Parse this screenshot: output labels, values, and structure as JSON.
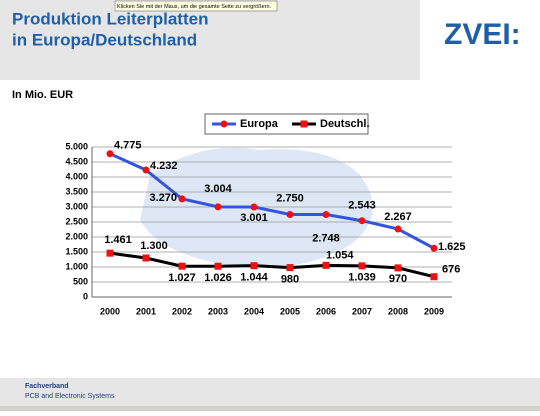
{
  "header": {
    "title_line1": "Produktion Leiterplatten",
    "title_line2": "in Europa/Deutschland",
    "tooltip": "Klicken Sie mit der Maus, um die gesamte Seite zu vergrößern.",
    "logo": "ZVEI:"
  },
  "unit_label": "In Mio. EUR",
  "footer": {
    "line1": "Fachverband",
    "line2": "PCB and Electronic Systems"
  },
  "chart_data": {
    "type": "line",
    "categories": [
      "2000",
      "2001",
      "2002",
      "2003",
      "2004",
      "2005",
      "2006",
      "2007",
      "2008",
      "2009"
    ],
    "series": [
      {
        "name": "Europa",
        "color": "#3355dd",
        "marker_color": "#ee1111",
        "values": [
          4775,
          4232,
          3270,
          3004,
          3001,
          2750,
          2748,
          2543,
          2267,
          1625
        ],
        "value_labels": [
          "4.775",
          "4.232",
          "3.270",
          "3.004",
          "3.001",
          "2.750",
          "2.748",
          "2.543",
          "2.267",
          "1.625"
        ]
      },
      {
        "name": "Deutschl.",
        "color": "#000000",
        "marker_color": "#ee1111",
        "values": [
          1461,
          1300,
          1027,
          1026,
          1044,
          980,
          1054,
          1039,
          970,
          676
        ],
        "value_labels": [
          "1.461",
          "1.300",
          "1.027",
          "1.026",
          "1.044",
          "980",
          "1.054",
          "1.039",
          "970",
          "676"
        ]
      }
    ],
    "ylim": [
      0,
      5000
    ],
    "yticks": [
      0,
      500,
      {
        "value": 1000,
        "label": "1.000"
      },
      {
        "value": 1500,
        "label": "1.500"
      },
      {
        "value": 2000,
        "label": "2.000"
      },
      {
        "value": 2500,
        "label": "2.500"
      },
      {
        "value": 3000,
        "label": "3.000"
      },
      {
        "value": 3500,
        "label": "3.500"
      },
      {
        "value": 4000,
        "label": "4.000"
      },
      {
        "value": 4500,
        "label": "4.500"
      },
      {
        "value": 5000,
        "label": "5.000"
      }
    ],
    "grid": true,
    "legend": "top"
  }
}
